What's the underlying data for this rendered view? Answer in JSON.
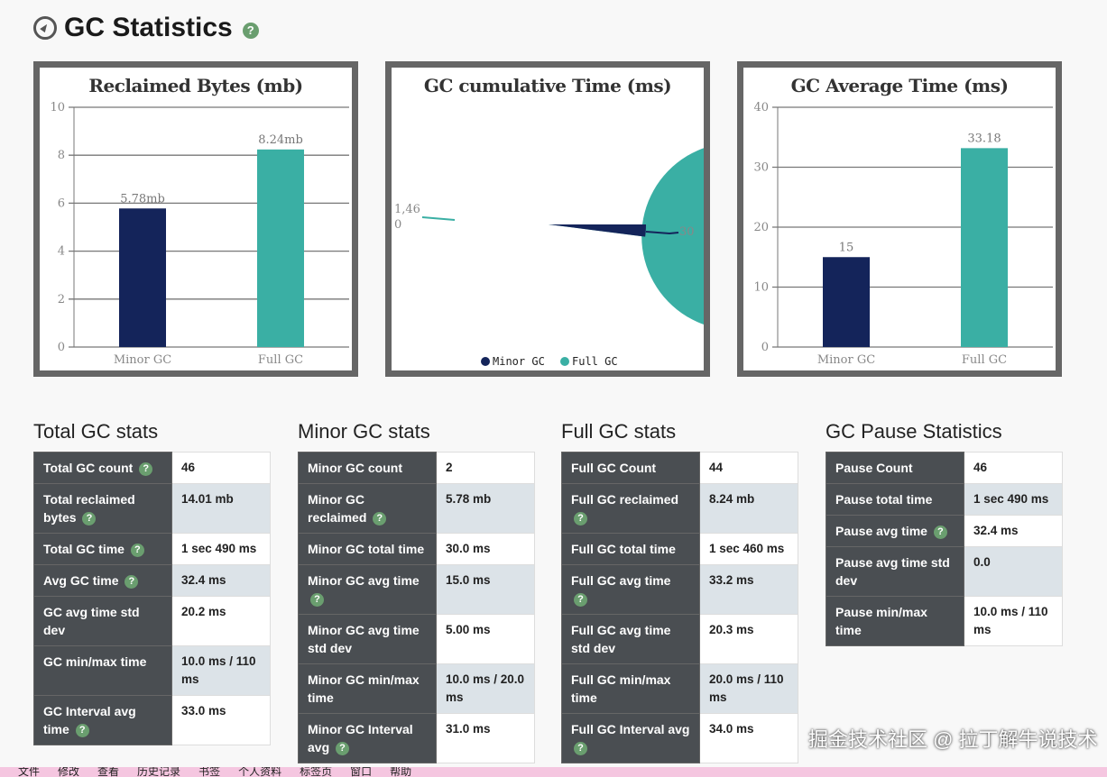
{
  "header": {
    "title": "GC Statistics"
  },
  "colors": {
    "minor": "#14245a",
    "full": "#3aafa4"
  },
  "chart_data": [
    {
      "type": "bar",
      "title": "Reclaimed Bytes (mb)",
      "categories": [
        "Minor GC",
        "Full GC"
      ],
      "values": [
        5.78,
        8.24
      ],
      "labels": [
        "5.78mb",
        "8.24mb"
      ],
      "ylim": [
        0,
        10
      ],
      "yticks": [
        "0",
        "2",
        "4",
        "6",
        "8",
        "10"
      ],
      "grid": true
    },
    {
      "type": "pie",
      "title": "GC cumulative Time (ms)",
      "categories": [
        "Minor GC",
        "Full GC"
      ],
      "values": [
        30,
        1460
      ],
      "labels": [
        "30",
        "1,460"
      ],
      "legend": "bottom"
    },
    {
      "type": "bar",
      "title": "GC Average Time (ms)",
      "categories": [
        "Minor GC",
        "Full GC"
      ],
      "values": [
        15,
        33.18
      ],
      "labels": [
        "15",
        "33.18"
      ],
      "ylim": [
        0,
        40
      ],
      "yticks": [
        "0",
        "10",
        "20",
        "30",
        "40"
      ],
      "grid": true
    }
  ],
  "sections": [
    {
      "title": "Total GC stats",
      "rows": [
        [
          "Total GC count",
          true,
          "46"
        ],
        [
          "Total reclaimed bytes",
          true,
          "14.01 mb"
        ],
        [
          "Total GC time",
          true,
          "1 sec 490 ms"
        ],
        [
          "Avg GC time",
          true,
          "32.4 ms"
        ],
        [
          "GC avg time std dev",
          false,
          "20.2 ms"
        ],
        [
          "GC min/max time",
          false,
          "10.0 ms / 110 ms"
        ],
        [
          "GC Interval avg time",
          true,
          "33.0 ms"
        ]
      ]
    },
    {
      "title": "Minor GC stats",
      "rows": [
        [
          "Minor GC count",
          false,
          "2"
        ],
        [
          "Minor GC reclaimed",
          true,
          "5.78 mb"
        ],
        [
          "Minor GC total time",
          false,
          "30.0 ms"
        ],
        [
          "Minor GC avg time",
          true,
          "15.0 ms"
        ],
        [
          "Minor GC avg time std dev",
          false,
          "5.00 ms"
        ],
        [
          "Minor GC min/max time",
          false,
          "10.0 ms / 20.0 ms"
        ],
        [
          "Minor GC Interval avg",
          true,
          "31.0 ms"
        ]
      ]
    },
    {
      "title": "Full GC stats",
      "rows": [
        [
          "Full GC Count",
          false,
          "44"
        ],
        [
          "Full GC reclaimed",
          true,
          "8.24 mb"
        ],
        [
          "Full GC total time",
          false,
          "1 sec 460 ms"
        ],
        [
          "Full GC avg time",
          true,
          "33.2 ms"
        ],
        [
          "Full GC avg time std dev",
          false,
          "20.3 ms"
        ],
        [
          "Full GC min/max time",
          false,
          "20.0 ms / 110 ms"
        ],
        [
          "Full GC Interval avg",
          true,
          "34.0 ms"
        ]
      ]
    },
    {
      "title": "GC Pause Statistics",
      "rows": [
        [
          "Pause Count",
          false,
          "46"
        ],
        [
          "Pause total time",
          false,
          "1 sec 490 ms"
        ],
        [
          "Pause avg time",
          true,
          "32.4 ms"
        ],
        [
          "Pause avg time std dev",
          false,
          "0.0"
        ],
        [
          "Pause min/max time",
          false,
          "10.0 ms / 110 ms"
        ]
      ]
    }
  ],
  "menubar": [
    "文件",
    "修改",
    "查看",
    "历史记录",
    "书签",
    "个人资料",
    "标签页",
    "窗口",
    "帮助"
  ],
  "watermark": "掘金技术社区 @ 拉丁解牛说技术"
}
